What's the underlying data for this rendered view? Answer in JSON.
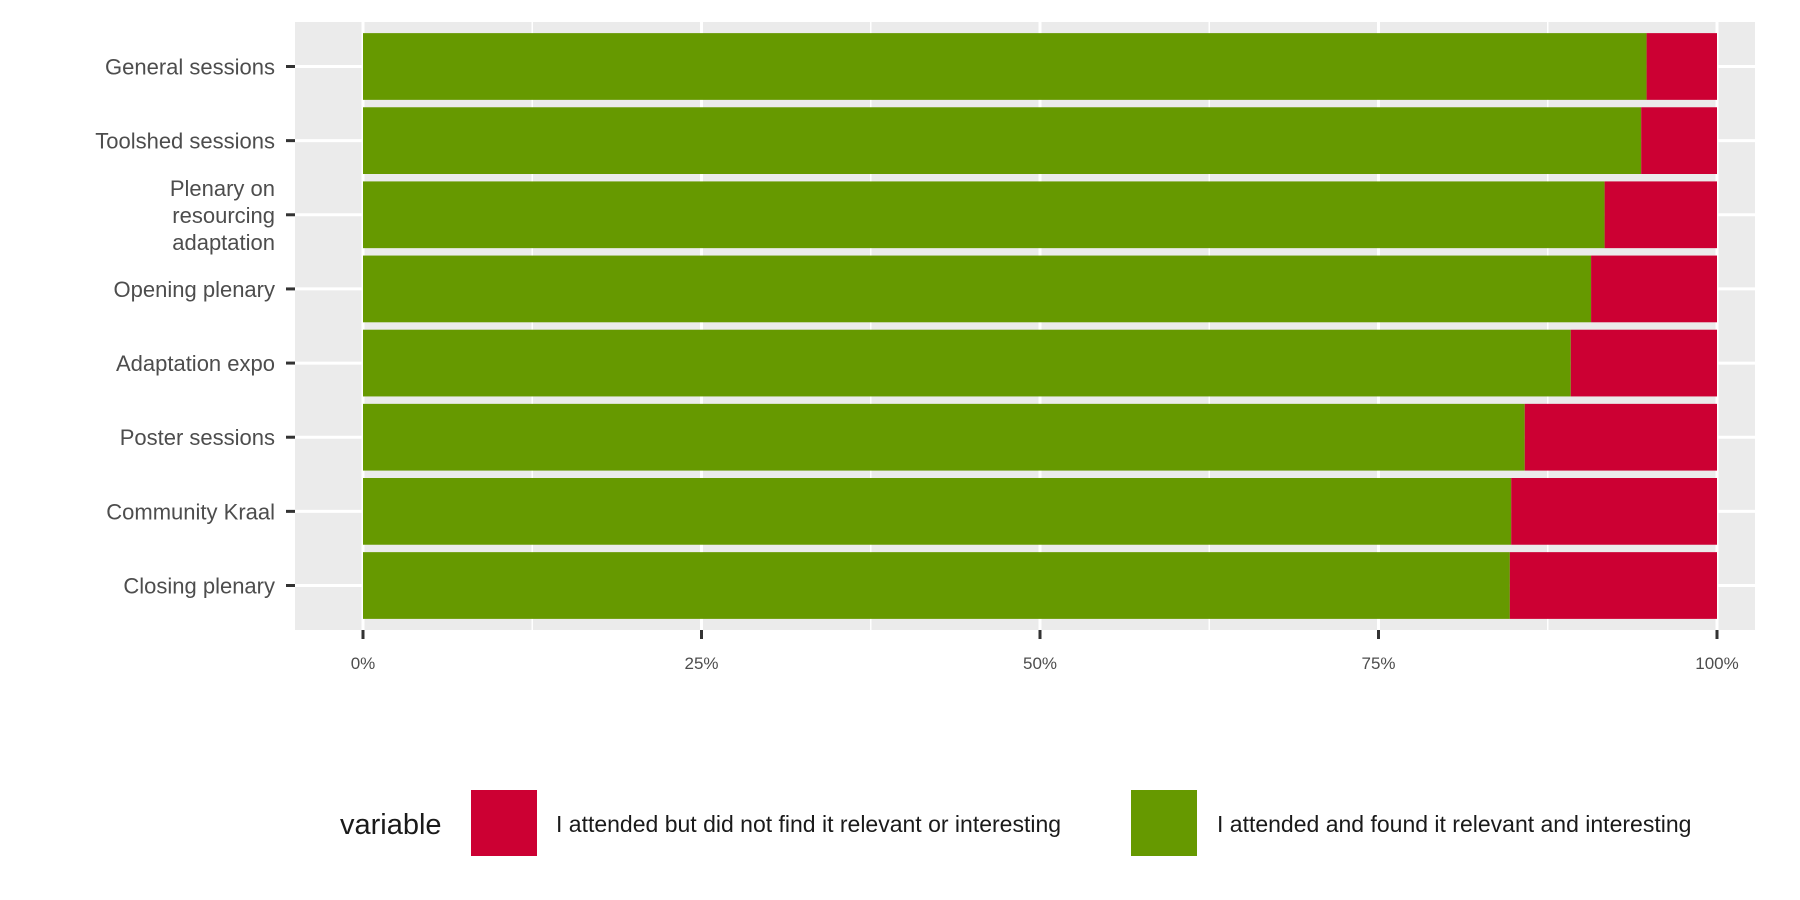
{
  "chart_data": {
    "type": "bar",
    "orientation": "horizontal",
    "stacked": true,
    "categories": [
      "General sessions",
      "Toolshed sessions",
      "Plenary on resourcing adaptation",
      "Opening plenary",
      "Adaptation expo",
      "Poster sessions",
      "Community Kraal",
      "Closing plenary"
    ],
    "series": [
      {
        "name": "I attended and found it relevant and interesting",
        "color": "#669900",
        "values": [
          0.948,
          0.944,
          0.917,
          0.907,
          0.892,
          0.858,
          0.848,
          0.847
        ]
      },
      {
        "name": "I attended but did not find it relevant or interesting",
        "color": "#CC0033",
        "values": [
          0.052,
          0.056,
          0.083,
          0.093,
          0.108,
          0.142,
          0.152,
          0.153
        ]
      }
    ],
    "xlim": [
      0,
      1
    ],
    "xticks": [
      "0%",
      "25%",
      "50%",
      "75%",
      "100%"
    ],
    "xlabel": "",
    "ylabel": "",
    "legend": {
      "title": "variable",
      "position": "bottom",
      "entries": [
        {
          "label": "I attended but did not find it relevant or interesting",
          "color": "#CC0033"
        },
        {
          "label": "I attended and found it relevant and interesting",
          "color": "#669900"
        }
      ]
    },
    "grid": true,
    "panel_background": "#EBEBEB"
  }
}
